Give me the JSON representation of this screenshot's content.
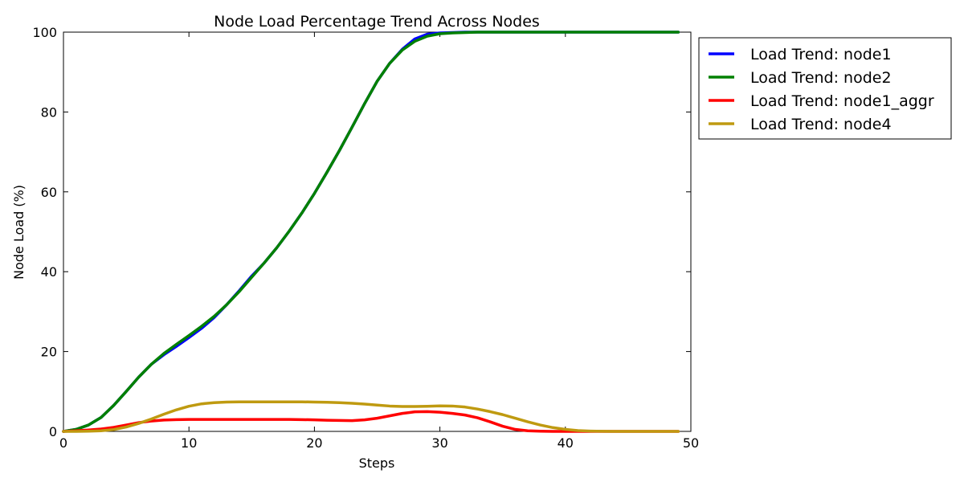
{
  "chart_data": {
    "type": "line",
    "title": "Node Load Percentage Trend Across Nodes",
    "xlabel": "Steps",
    "ylabel": "Node Load (%)",
    "xlim": [
      0,
      50
    ],
    "ylim": [
      0,
      100
    ],
    "xticks": [
      0,
      10,
      20,
      30,
      40,
      50
    ],
    "yticks": [
      0,
      20,
      40,
      60,
      80,
      100
    ],
    "grid": false,
    "legend_position": "outside-top-right",
    "x": [
      0,
      1,
      2,
      3,
      4,
      5,
      6,
      7,
      8,
      9,
      10,
      11,
      12,
      13,
      14,
      15,
      16,
      17,
      18,
      19,
      20,
      21,
      22,
      23,
      24,
      25,
      26,
      27,
      28,
      29,
      30,
      31,
      32,
      33,
      34,
      35,
      36,
      37,
      38,
      39,
      40,
      41,
      42,
      43,
      44,
      45,
      46,
      47,
      48,
      49
    ],
    "series": [
      {
        "name": "Load Trend: node1",
        "color": "#0000ff",
        "values": [
          0,
          0.5,
          1.6,
          3.5,
          6.5,
          10,
          13.6,
          16.8,
          19.2,
          21.3,
          23.5,
          25.8,
          28.5,
          31.7,
          35.2,
          38.9,
          42.2,
          46,
          50.2,
          54.7,
          59.6,
          64.9,
          70.4,
          76.2,
          82.1,
          87.7,
          92.2,
          95.7,
          98.3,
          99.5,
          99.8,
          99.9,
          100,
          100,
          100,
          100,
          100,
          100,
          100,
          100,
          100,
          100,
          100,
          100,
          100,
          100,
          100,
          100,
          100,
          100
        ]
      },
      {
        "name": "Load Trend: node2",
        "color": "#008000",
        "values": [
          0,
          0.5,
          1.6,
          3.5,
          6.5,
          10,
          13.6,
          16.8,
          19.5,
          21.8,
          24,
          26.3,
          28.8,
          31.7,
          35,
          38.6,
          42.2,
          46,
          50.2,
          54.7,
          59.6,
          64.9,
          70.4,
          76.2,
          82.1,
          87.7,
          92.2,
          95.5,
          97.7,
          99,
          99.6,
          99.8,
          99.9,
          100,
          100,
          100,
          100,
          100,
          100,
          100,
          100,
          100,
          100,
          100,
          100,
          100,
          100,
          100,
          100,
          100
        ]
      },
      {
        "name": "Load Trend: node1_aggr",
        "color": "#ff0000",
        "values": [
          0,
          0.15,
          0.35,
          0.6,
          1,
          1.6,
          2.2,
          2.6,
          2.85,
          2.95,
          3,
          3,
          3,
          3,
          3,
          3,
          3,
          3,
          3,
          2.95,
          2.9,
          2.8,
          2.75,
          2.7,
          2.9,
          3.3,
          3.9,
          4.5,
          4.9,
          4.95,
          4.8,
          4.5,
          4.1,
          3.4,
          2.4,
          1.3,
          0.5,
          0.15,
          0.05,
          0,
          0,
          0,
          0,
          0,
          0,
          0,
          0,
          0,
          0,
          0
        ]
      },
      {
        "name": "Load Trend: node4",
        "color": "#bf9a10",
        "values": [
          0,
          0,
          0.05,
          0.15,
          0.45,
          1.1,
          2,
          3.1,
          4.3,
          5.4,
          6.3,
          6.9,
          7.2,
          7.35,
          7.4,
          7.4,
          7.4,
          7.4,
          7.4,
          7.4,
          7.35,
          7.3,
          7.2,
          7.05,
          6.85,
          6.6,
          6.35,
          6.25,
          6.25,
          6.3,
          6.4,
          6.35,
          6.1,
          5.6,
          4.95,
          4.2,
          3.3,
          2.4,
          1.6,
          0.95,
          0.5,
          0.2,
          0.08,
          0.03,
          0,
          0,
          0,
          0,
          0,
          0
        ]
      }
    ]
  }
}
